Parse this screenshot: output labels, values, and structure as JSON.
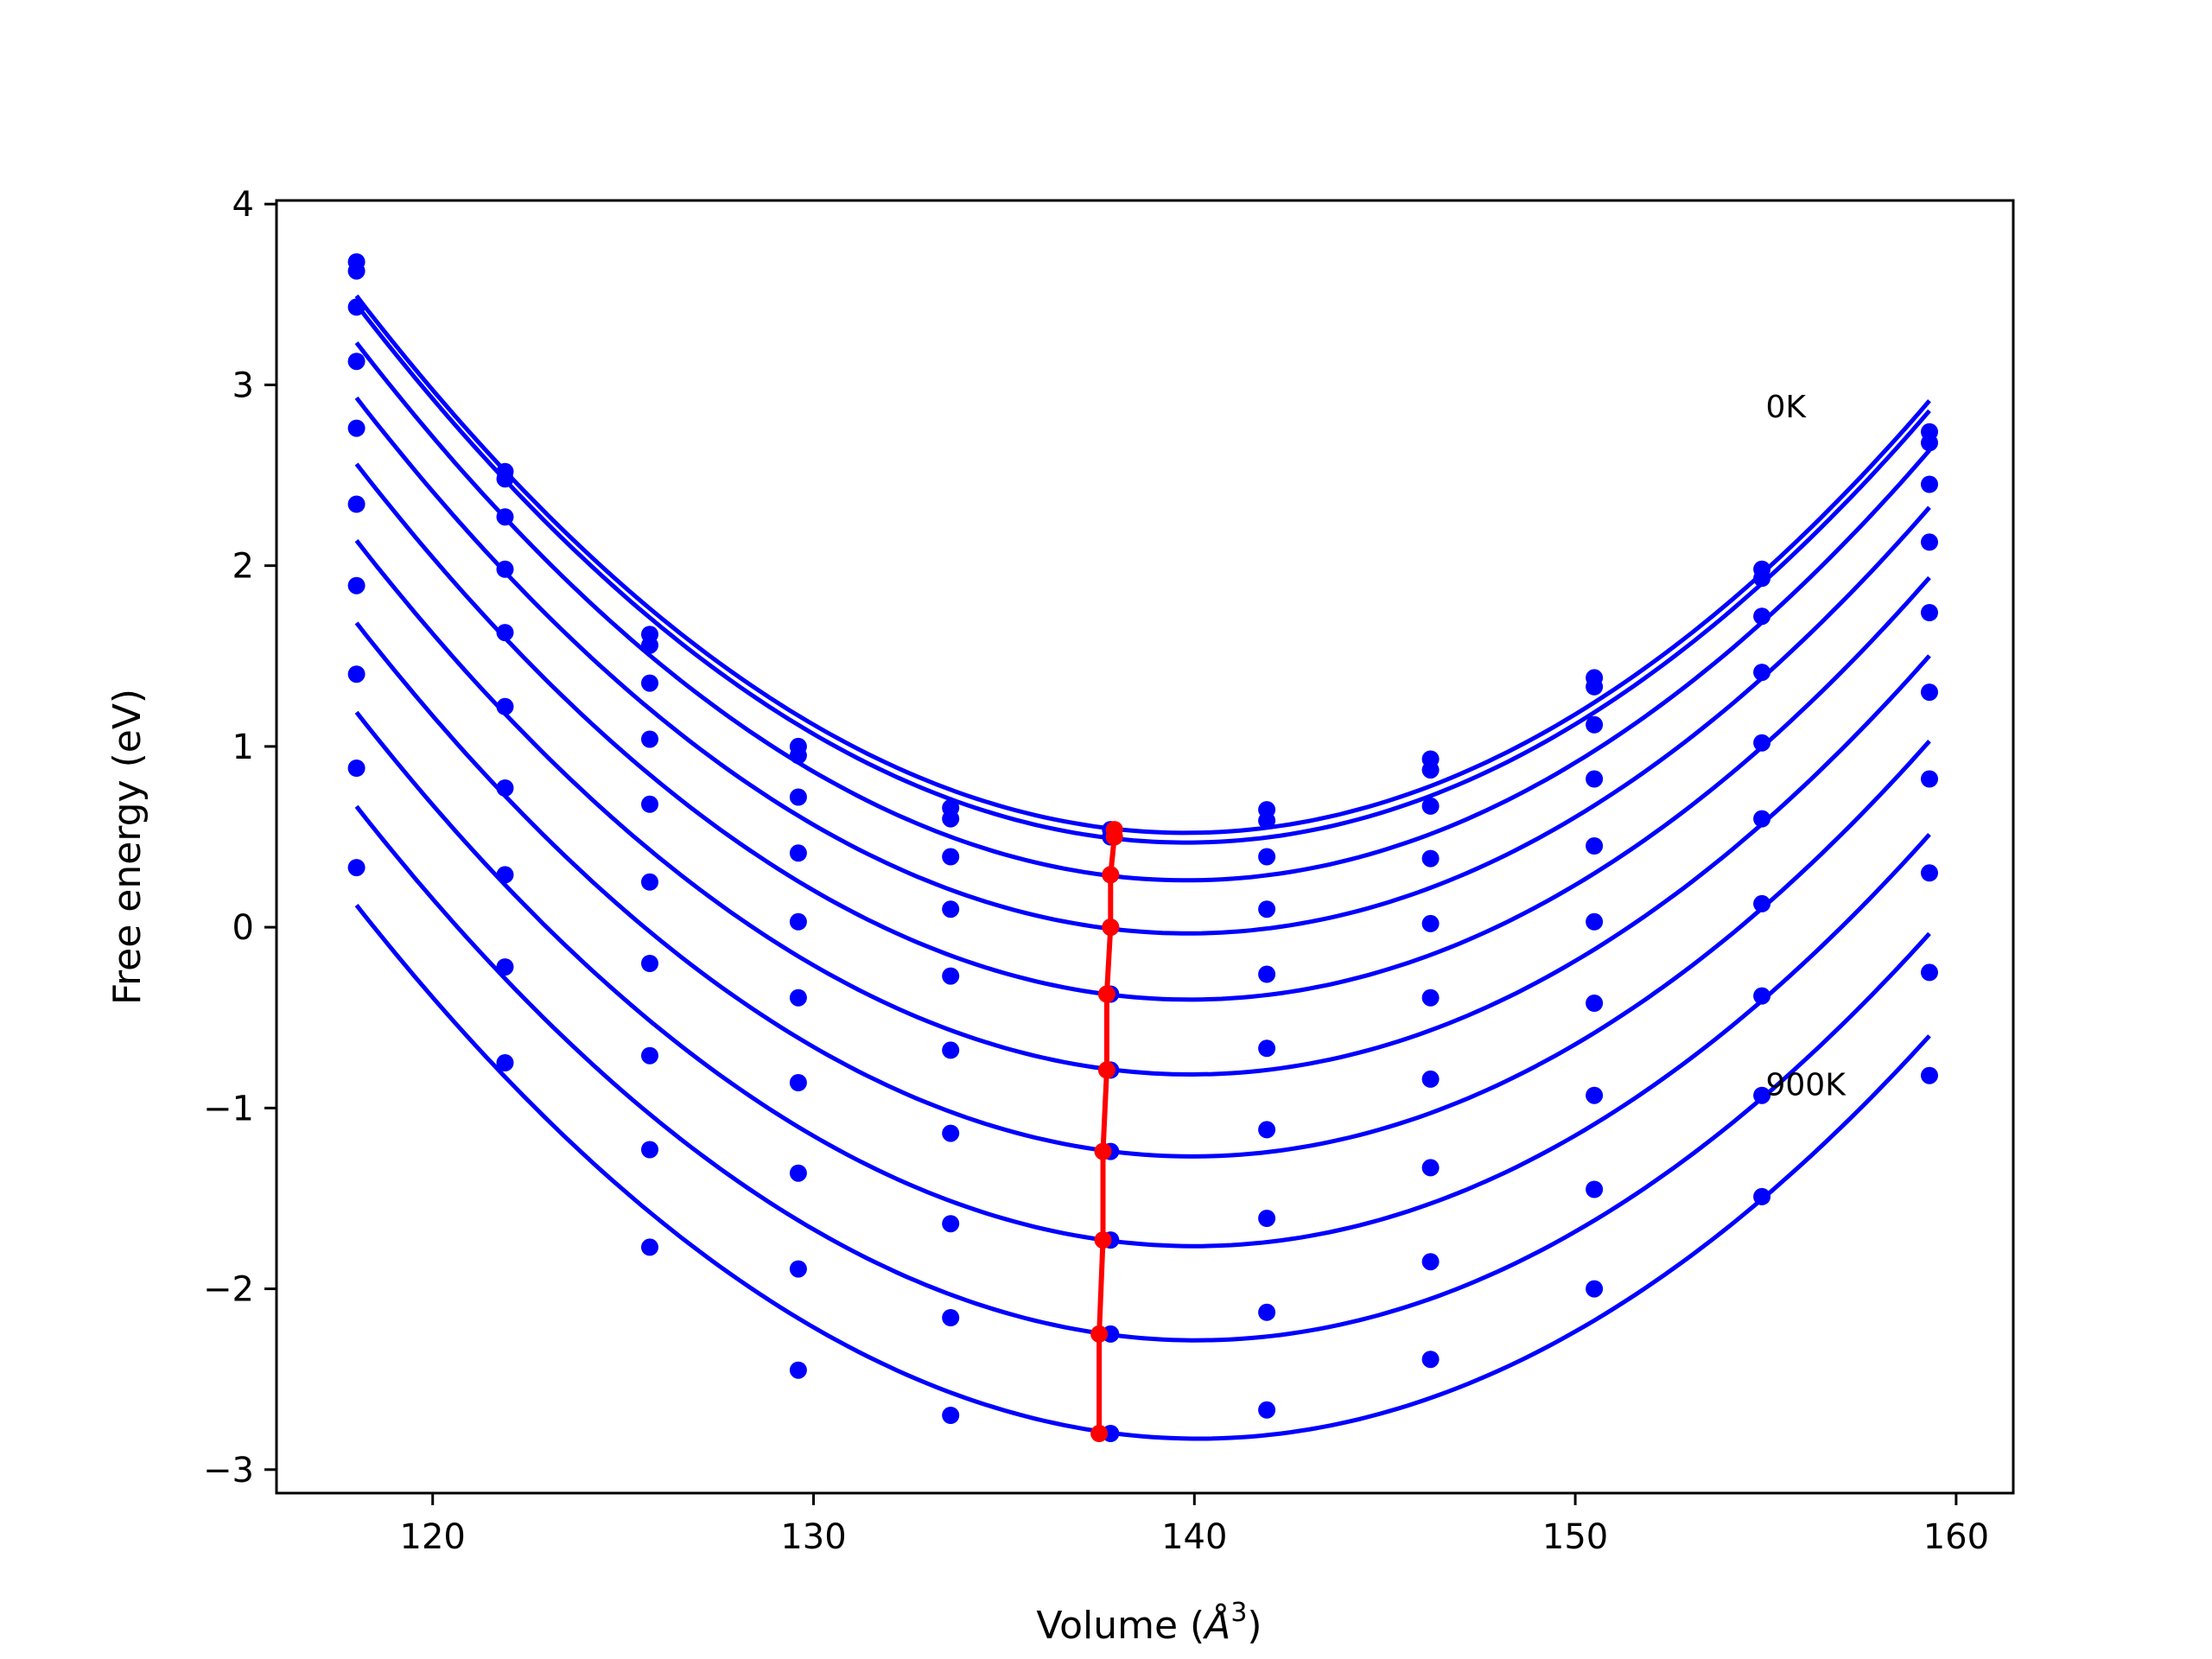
{
  "chart_data": {
    "type": "line",
    "title": "",
    "xlabel": "Volume (",
    "xlabel_symbol": "Å",
    "xlabel_exp": "3",
    "xlabel_close": ")",
    "ylabel": "Free energy (eV)",
    "xlim": [
      115.9,
      161.5
    ],
    "ylim": [
      -3.13,
      4.02
    ],
    "xticks": [
      120,
      130,
      140,
      150,
      160
    ],
    "yticks": [
      -3,
      -2,
      -1,
      0,
      1,
      2,
      3,
      4
    ],
    "xtick_labels": [
      "120",
      "130",
      "140",
      "150",
      "160"
    ],
    "ytick_labels": [
      "−3",
      "−2",
      "−1",
      "0",
      "1",
      "2",
      "3",
      "4"
    ],
    "grid": false,
    "legend": "none",
    "colors": {
      "curves": "#0000ff",
      "minima": "#ff0000"
    },
    "annotations": [
      {
        "text": "0K",
        "x": 155.0,
        "y": 2.82
      },
      {
        "text": "900K",
        "x": 155.0,
        "y": -0.93
      }
    ],
    "volumes": [
      118.0,
      121.9,
      125.7,
      129.6,
      133.6,
      137.8,
      141.9,
      146.2,
      150.5,
      154.9,
      159.3
    ],
    "series": [
      {
        "min_volume": 137.9,
        "min_energy": 0.54,
        "points": [
          3.68,
          2.52,
          1.62,
          1.0,
          0.66,
          0.54,
          0.65,
          0.93,
          1.38,
          1.98,
          2.74
        ]
      },
      {
        "min_volume": 137.9,
        "min_energy": 0.5,
        "points": [
          3.63,
          2.48,
          1.56,
          0.95,
          0.6,
          0.5,
          0.59,
          0.87,
          1.33,
          1.93,
          2.68
        ]
      },
      {
        "min_volume": 137.8,
        "min_energy": 0.29,
        "points": [
          3.43,
          2.27,
          1.35,
          0.72,
          0.39,
          0.29,
          0.39,
          0.67,
          1.12,
          1.72,
          2.45
        ]
      },
      {
        "min_volume": 137.8,
        "min_energy": 0.0,
        "points": [
          3.13,
          1.98,
          1.04,
          0.41,
          0.1,
          0.0,
          0.1,
          0.38,
          0.82,
          1.41,
          2.13
        ]
      },
      {
        "min_volume": 137.7,
        "min_energy": -0.37,
        "points": [
          2.76,
          1.63,
          0.68,
          0.03,
          -0.27,
          -0.37,
          -0.26,
          0.02,
          0.45,
          1.02,
          1.74
        ]
      },
      {
        "min_volume": 137.7,
        "min_energy": -0.79,
        "points": [
          2.34,
          1.22,
          0.25,
          -0.39,
          -0.68,
          -0.79,
          -0.67,
          -0.39,
          0.03,
          0.6,
          1.3
        ]
      },
      {
        "min_volume": 137.6,
        "min_energy": -1.24,
        "points": [
          1.89,
          0.77,
          -0.2,
          -0.86,
          -1.14,
          -1.24,
          -1.12,
          -0.84,
          -0.42,
          0.13,
          0.82
        ]
      },
      {
        "min_volume": 137.6,
        "min_energy": -1.73,
        "points": [
          1.4,
          0.29,
          -0.71,
          -1.36,
          -1.64,
          -1.73,
          -1.61,
          -1.33,
          -0.93,
          -0.38,
          0.3
        ]
      },
      {
        "min_volume": 137.5,
        "min_energy": -2.25,
        "points": [
          0.88,
          -0.22,
          -1.23,
          -1.89,
          -2.16,
          -2.25,
          -2.13,
          -1.85,
          -1.45,
          -0.93,
          -0.25
        ]
      },
      {
        "min_volume": 137.5,
        "min_energy": -2.8,
        "points": [
          0.33,
          -0.75,
          -1.77,
          -2.45,
          -2.7,
          -2.8,
          -2.67,
          -2.39,
          -2.0,
          -1.49,
          -0.82
        ]
      }
    ]
  }
}
